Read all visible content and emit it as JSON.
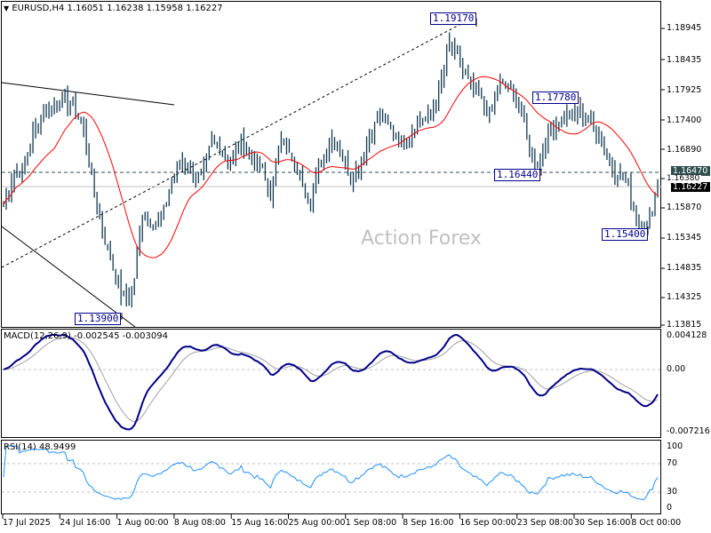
{
  "header": {
    "symbol_timeframe": "EURUSD,H4",
    "open": "1.16051",
    "high": "1.16238",
    "low": "1.15958",
    "close": "1.16227",
    "dropdown_icon": "triangle-down-icon"
  },
  "watermark": "Action Forex",
  "price_axis": {
    "ticks": [
      "1.18945",
      "1.18435",
      "1.17925",
      "1.17400",
      "1.16890",
      "1.16380",
      "1.15870",
      "1.15345",
      "1.14835",
      "1.14325",
      "1.13815"
    ],
    "level_tag": "1.16470",
    "current_tag": "1.16227"
  },
  "annotations": [
    "1.19170",
    "1.17780",
    "1.16440",
    "1.15400",
    "1.13900"
  ],
  "macd": {
    "title": "MACD(12,26,9) -0.002545 -0.003094",
    "ticks": [
      "0.004128",
      "0.00",
      "-0.007216"
    ]
  },
  "rsi": {
    "title": "RSI(14) 48.9499",
    "ticks": [
      "100",
      "70",
      "30",
      "0"
    ]
  },
  "time_axis": [
    "17 Jul 2025",
    "24 Jul 16:00",
    "1 Aug 00:00",
    "8 Aug 08:00",
    "15 Aug 16:00",
    "25 Aug 00:00",
    "1 Sep 08:00",
    "8 Sep 16:00",
    "16 Sep 00:00",
    "23 Sep 08:00",
    "30 Sep 16:00",
    "8 Oct 00:00"
  ],
  "colors": {
    "bars": "#123a52",
    "ma": "#ff0000",
    "macd": "#00008b",
    "signal": "#a0a0a0",
    "rsi": "#1e90ff",
    "level_tag_bg": "#2f4f4f",
    "current_tag_bg": "#000000",
    "watermark": "#c0c0c0"
  },
  "chart_data": {
    "type": "ohlc",
    "title": "EURUSD,H4",
    "ylim": [
      1.13815,
      1.1917
    ],
    "grid": false,
    "close_approx": [
      1.159,
      1.1644,
      1.1652,
      1.1713,
      1.1752,
      1.1759,
      1.1775,
      1.1759,
      1.1729,
      1.1621,
      1.1544,
      1.1483,
      1.1429,
      1.1437,
      1.1575,
      1.156,
      1.1567,
      1.1636,
      1.1667,
      1.1644,
      1.1636,
      1.1698,
      1.169,
      1.166,
      1.1698,
      1.1675,
      1.1652,
      1.1606,
      1.1713,
      1.1667,
      1.1636,
      1.1598,
      1.166,
      1.1706,
      1.1683,
      1.1636,
      1.166,
      1.1713,
      1.1744,
      1.1721,
      1.1698,
      1.1713,
      1.1736,
      1.1744,
      1.179,
      1.1867,
      1.1836,
      1.1798,
      1.1775,
      1.1744,
      1.1798,
      1.179,
      1.1767,
      1.1683,
      1.166,
      1.1721,
      1.1736,
      1.1744,
      1.1744,
      1.1736,
      1.1713,
      1.1667,
      1.1644,
      1.1621,
      1.156,
      1.1552,
      1.1623
    ],
    "horizontal_levels": [
      1.1647,
      1.16227
    ],
    "swing_labels": [
      1.1917,
      1.1778,
      1.1644,
      1.154,
      1.139
    ],
    "indicators": [
      "MA (red)",
      "MACD(12,26,9)",
      "RSI(14)"
    ],
    "macd_range": [
      -0.007216,
      0.004128
    ],
    "rsi_levels": [
      30,
      70
    ]
  }
}
